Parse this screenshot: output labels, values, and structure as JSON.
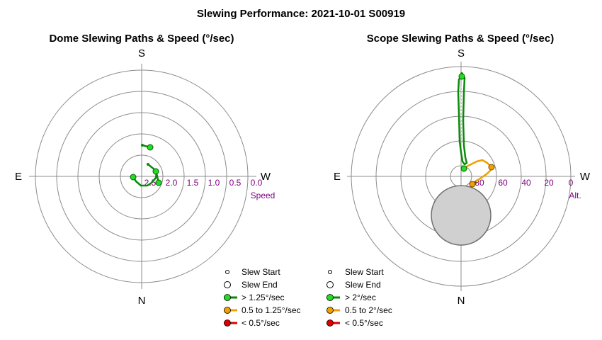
{
  "title": "Slewing Performance: 2021-10-01 S00919",
  "colors": {
    "ring": "#8c8c8c",
    "fast": "#0a8a0a",
    "fast_marker": "#22dd22",
    "medium": "#f0a000",
    "slow": "#dd0000",
    "tick_label": "#800080",
    "zenith_blocker": "#d0d0d0"
  },
  "dome": {
    "subtitle": "Dome Slewing Paths & Speed (°/sec)",
    "compass": {
      "top": "S",
      "bottom": "N",
      "left": "E",
      "right": "W"
    },
    "tick_labels": [
      "2.5",
      "2.0",
      "1.5",
      "1.0",
      "0.5",
      "0.0"
    ],
    "axis_name": "Speed",
    "legend": [
      {
        "marker": "start",
        "label": "Slew Start"
      },
      {
        "marker": "end",
        "label": "Slew End"
      },
      {
        "marker": "fast",
        "label": "> 1.25°/sec"
      },
      {
        "marker": "medium",
        "label": "0.5 to 1.25°/sec"
      },
      {
        "marker": "slow",
        "label": "< 0.5°/sec"
      }
    ]
  },
  "scope": {
    "subtitle": "Scope Slewing Paths & Speed (°/sec)",
    "compass": {
      "top": "S",
      "bottom": "N",
      "left": "E",
      "right": "W"
    },
    "tick_labels": [
      "80",
      "60",
      "40",
      "20",
      "0"
    ],
    "axis_name": "Alt.",
    "legend": [
      {
        "marker": "start",
        "label": "Slew Start"
      },
      {
        "marker": "end",
        "label": "Slew End"
      },
      {
        "marker": "fast",
        "label": "> 2°/sec"
      },
      {
        "marker": "medium",
        "label": "0.5 to 2°/sec"
      },
      {
        "marker": "slow",
        "label": "< 0.5°/sec"
      }
    ]
  },
  "chart_data": [
    {
      "type": "scatter",
      "title": "Dome Slewing Paths & Speed (°/sec)",
      "coordinate_system": "polar",
      "radial_axis": {
        "label": "Speed",
        "range": [
          0,
          2.5
        ],
        "direction": "inward"
      },
      "paths": [
        {
          "speed_class": "> 1.25°/sec",
          "points": [
            [
              1.7,
              -2.0
            ],
            [
              1.85,
              -0.55
            ]
          ]
        },
        {
          "speed_class": "> 1.25°/sec",
          "points": [
            [
              1.55,
              0.1
            ],
            [
              1.5,
              0.7
            ],
            [
              1.45,
              1.3
            ],
            [
              1.45,
              2.0
            ],
            [
              1.55,
              2.5
            ],
            [
              1.7,
              2.8
            ],
            [
              1.85,
              2.0
            ],
            [
              1.9,
              1.0
            ],
            [
              1.9,
              0.0
            ],
            [
              1.9,
              -0.3
            ]
          ]
        },
        {
          "speed_class": "> 1.25°/sec",
          "points": [
            [
              1.7,
              0.8
            ],
            [
              1.75,
              0.35
            ],
            [
              1.8,
              0.15
            ]
          ]
        }
      ]
    },
    {
      "type": "scatter",
      "title": "Scope Slewing Paths & Speed (°/sec)",
      "coordinate_system": "polar",
      "radial_axis": {
        "label": "Alt.",
        "range": [
          0,
          90
        ],
        "direction": "inward"
      },
      "paths": [
        {
          "speed_class": "> 2°/sec",
          "points": [
            [
              80,
              0.05
            ],
            [
              76,
              -0.03
            ],
            [
              52,
              0.03
            ],
            [
              31,
              0.04
            ],
            [
              20,
              0.01
            ],
            [
              15,
              0.0
            ],
            [
              80,
              0.03
            ]
          ]
        },
        {
          "speed_class": "0.5 to 2°/sec",
          "points": [
            [
              80,
              0.5
            ],
            [
              70,
              0.8
            ],
            [
              60,
              1.1
            ],
            [
              63,
              1.35
            ]
          ]
        },
        {
          "speed_class": "0.5 to 2°/sec",
          "points": [
            [
              74,
              2.6
            ],
            [
              78,
              2.5
            ],
            [
              82,
              2.7
            ]
          ]
        }
      ]
    }
  ]
}
